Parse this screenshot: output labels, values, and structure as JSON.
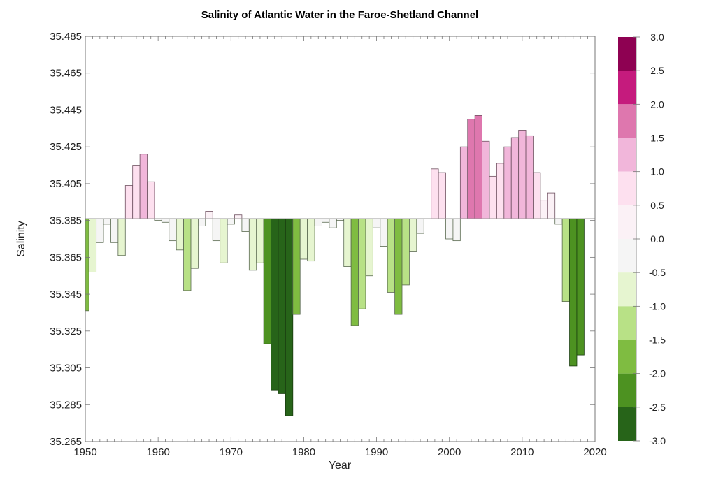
{
  "chart_data": {
    "type": "bar",
    "title": "Salinity of Atlantic Water in the Faroe-Shetland Channel",
    "xlabel": "Year",
    "ylabel": "Salinity",
    "xlim": [
      1950,
      2020
    ],
    "ylim": [
      35.265,
      35.485
    ],
    "baseline": 35.386,
    "x_ticks": [
      1950,
      1960,
      1970,
      1980,
      1990,
      2000,
      2010,
      2020
    ],
    "x_tick_labels": [
      "1950",
      "1960",
      "1970",
      "1980",
      "1990",
      "2000",
      "2010",
      "2020"
    ],
    "y_ticks": [
      35.265,
      35.285,
      35.305,
      35.325,
      35.345,
      35.365,
      35.385,
      35.405,
      35.425,
      35.445,
      35.465,
      35.485
    ],
    "y_tick_labels": [
      "35.265",
      "35.285",
      "35.305",
      "35.325",
      "35.345",
      "35.365",
      "35.385",
      "35.405",
      "35.425",
      "35.445",
      "35.465",
      "35.485"
    ],
    "grid": false,
    "years": [
      1950,
      1951,
      1952,
      1953,
      1954,
      1955,
      1956,
      1957,
      1958,
      1959,
      1960,
      1961,
      1962,
      1963,
      1964,
      1965,
      1966,
      1967,
      1968,
      1969,
      1970,
      1971,
      1972,
      1973,
      1974,
      1975,
      1976,
      1977,
      1978,
      1979,
      1980,
      1981,
      1982,
      1983,
      1984,
      1985,
      1986,
      1987,
      1988,
      1989,
      1990,
      1991,
      1992,
      1993,
      1994,
      1995,
      1996,
      1997,
      1998,
      1999,
      2000,
      2001,
      2002,
      2003,
      2004,
      2005,
      2006,
      2007,
      2008,
      2009,
      2010,
      2011,
      2012,
      2013,
      2014,
      2015,
      2016,
      2017,
      2018
    ],
    "values": [
      35.336,
      35.357,
      35.373,
      35.383,
      35.373,
      35.366,
      35.404,
      35.415,
      35.421,
      35.406,
      35.385,
      35.384,
      35.374,
      35.369,
      35.347,
      35.359,
      35.382,
      35.39,
      35.374,
      35.362,
      35.383,
      35.388,
      35.379,
      35.358,
      35.362,
      35.318,
      35.293,
      35.291,
      35.279,
      35.334,
      35.364,
      35.363,
      35.382,
      35.384,
      35.381,
      35.385,
      35.36,
      35.328,
      35.337,
      35.355,
      35.381,
      35.371,
      35.346,
      35.334,
      35.35,
      35.368,
      35.378,
      35.386,
      35.413,
      35.411,
      35.375,
      35.374,
      35.425,
      35.44,
      35.442,
      35.428,
      35.409,
      35.416,
      35.425,
      35.43,
      35.434,
      35.431,
      35.411,
      35.396,
      35.4,
      35.383,
      35.341,
      35.306,
      35.312
    ],
    "anomaly_class": [
      -2,
      -1,
      0,
      0,
      0,
      -1,
      2,
      2,
      3,
      2,
      0,
      0,
      0,
      -1,
      -1.5,
      -1,
      0,
      1,
      0,
      -1,
      0,
      1,
      0,
      -1,
      -1,
      -2.5,
      -3,
      -3,
      -3,
      -2,
      -1,
      -1,
      0,
      0,
      0,
      0,
      -1,
      -2,
      -1.5,
      -1,
      0,
      0,
      -1.5,
      -2,
      -1.5,
      -1,
      0,
      0,
      2,
      2,
      0,
      0,
      3,
      4,
      4,
      3,
      2,
      2,
      3,
      3,
      3,
      3,
      2,
      1,
      1,
      0,
      -1.5,
      -2.5,
      -2.5
    ],
    "colorbar": {
      "label_values": [
        "3.0",
        "2.5",
        "2.0",
        "1.5",
        "1.0",
        "0.5",
        "0.0",
        "-0.5",
        "-1.0",
        "-1.5",
        "-2.0",
        "-2.5",
        "-3.0"
      ],
      "range": [
        -3.0,
        3.0
      ],
      "bands": [
        {
          "from": 2.5,
          "to": 3.0,
          "color": "#8e0152"
        },
        {
          "from": 2.0,
          "to": 2.5,
          "color": "#c51b7d"
        },
        {
          "from": 1.5,
          "to": 2.0,
          "color": "#de77ae"
        },
        {
          "from": 1.0,
          "to": 1.5,
          "color": "#f1b6da"
        },
        {
          "from": 0.5,
          "to": 1.0,
          "color": "#fde0ef"
        },
        {
          "from": 0.0,
          "to": 0.5,
          "color": "#fbf1f6"
        },
        {
          "from": -0.5,
          "to": 0.0,
          "color": "#f5f5f5"
        },
        {
          "from": -1.0,
          "to": -0.5,
          "color": "#e6f5d0"
        },
        {
          "from": -1.5,
          "to": -1.0,
          "color": "#b8e186"
        },
        {
          "from": -2.0,
          "to": -1.5,
          "color": "#7fbc41"
        },
        {
          "from": -2.5,
          "to": -2.0,
          "color": "#4d9221"
        },
        {
          "from": -3.0,
          "to": -2.5,
          "color": "#276419"
        }
      ]
    },
    "class_colors": {
      "4": "#de77ae",
      "3": "#f1b6da",
      "2": "#fde0ef",
      "1": "#fbf1f6",
      "0": "#f5f5f5",
      "-1": "#e6f5d0",
      "-1.5": "#b8e186",
      "-2": "#7fbc41",
      "-2.5": "#4d9221",
      "-3": "#276419"
    }
  }
}
